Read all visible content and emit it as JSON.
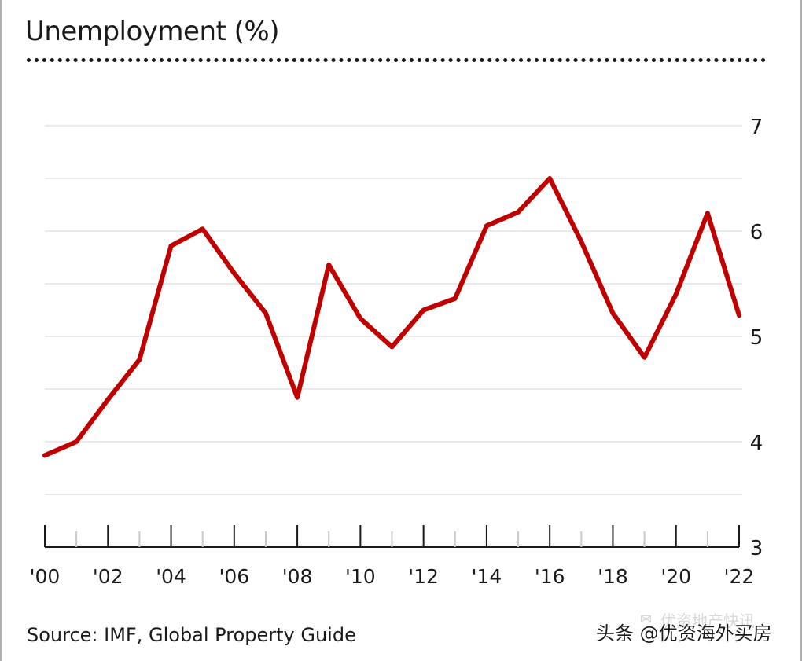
{
  "chart_data": {
    "type": "line",
    "title": "Unemployment (%)",
    "xlabel": "",
    "ylabel": "",
    "x": [
      2000,
      2001,
      2002,
      2003,
      2004,
      2005,
      2006,
      2007,
      2008,
      2009,
      2010,
      2011,
      2012,
      2013,
      2014,
      2015,
      2016,
      2017,
      2018,
      2019,
      2020,
      2021,
      2022
    ],
    "series": [
      {
        "name": "Unemployment",
        "color": "#c00000",
        "values": [
          3.87,
          4.0,
          4.4,
          4.78,
          5.86,
          6.02,
          5.6,
          5.22,
          4.42,
          5.68,
          5.17,
          4.9,
          5.25,
          5.36,
          6.05,
          6.18,
          6.5,
          5.9,
          5.22,
          4.8,
          5.4,
          6.17,
          5.2
        ]
      }
    ],
    "ylim": [
      3,
      7
    ],
    "y_ticks": [
      "3",
      "4",
      "5",
      "6",
      "7"
    ],
    "x_tick_labels": [
      "'00",
      "'02",
      "'04",
      "'06",
      "'08",
      "'10",
      "'12",
      "'14",
      "'16",
      "'18",
      "'20",
      "'22"
    ],
    "grid": true,
    "source": "Source: IMF, Global Property Guide"
  },
  "watermark": {
    "text": "头条 @优资海外买房",
    "ghost_text": "优资地产快讯"
  }
}
